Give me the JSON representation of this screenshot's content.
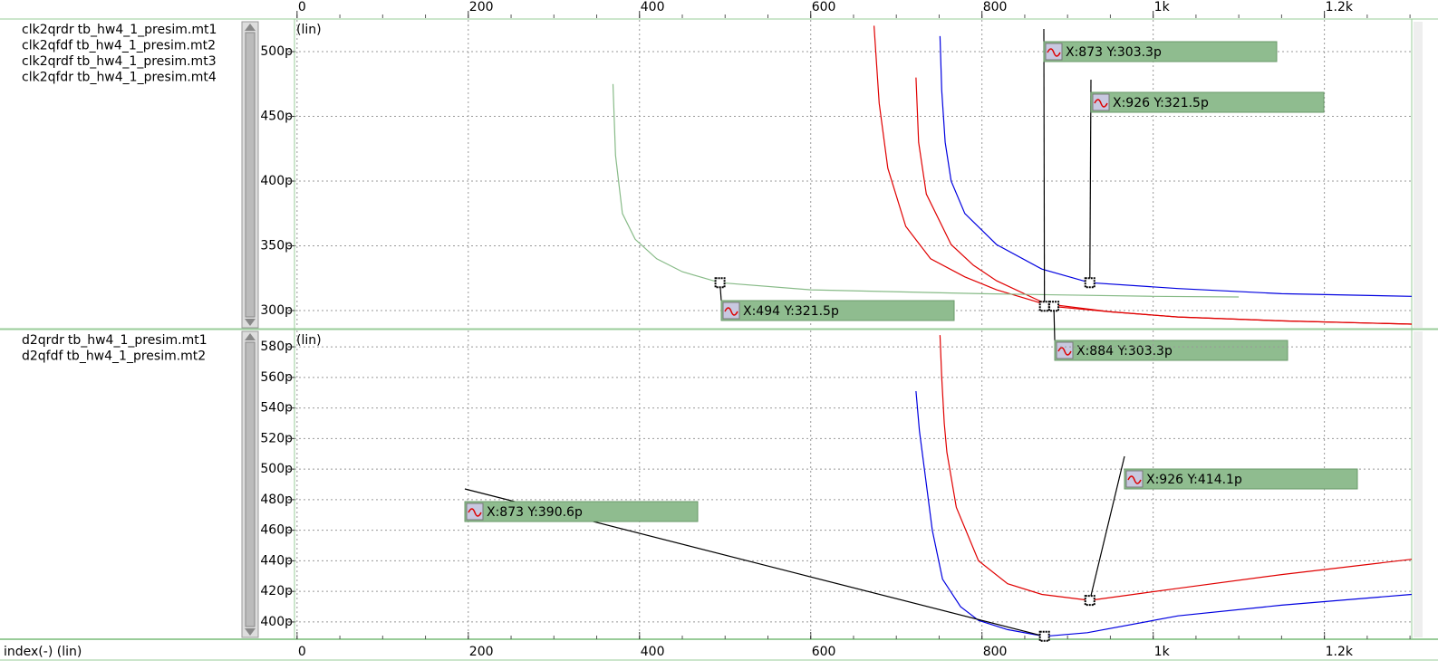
{
  "x_axis": {
    "label": "index(-) (lin)",
    "xlim": [
      -3,
      1302
    ],
    "xticks": [
      0,
      200,
      400,
      600,
      800,
      {
        "value": 1000,
        "label": "1k"
      },
      {
        "value": 1200,
        "label": "1.2k"
      }
    ]
  },
  "chart_data": [
    {
      "type": "line",
      "scale_label": "(lin)",
      "ylim": [
        286.7,
        524.5
      ],
      "yticks": [
        {
          "value": 300,
          "label": "300p"
        },
        {
          "value": 350,
          "label": "350p"
        },
        {
          "value": 400,
          "label": "400p"
        },
        {
          "value": 450,
          "label": "450p"
        },
        {
          "value": 500,
          "label": "500p"
        }
      ],
      "grid": true,
      "series": [
        {
          "name": "clk2qrdr",
          "source": "tb_hw4_1_presim.mt1",
          "color": "#e00000",
          "x": [
            674,
            680,
            690,
            711,
            740,
            780,
            817,
            870,
            950,
            1029,
            1150,
            1302
          ],
          "values": [
            520,
            460,
            410,
            365,
            340,
            326,
            316,
            305.6,
            299,
            295,
            292,
            289.5
          ]
        },
        {
          "name": "clk2qfdf",
          "source": "tb_hw4_1_presim.mt2",
          "color": "#0000e0",
          "x": [
            751,
            753,
            757,
            764,
            780,
            817,
            870,
            926,
            1029,
            1150,
            1302
          ],
          "values": [
            512,
            470,
            430,
            400,
            375,
            351,
            332,
            321.5,
            317,
            313,
            311
          ]
        },
        {
          "name": "clk2qrdf",
          "source": "tb_hw4_1_presim.mt3",
          "color": "#e00000",
          "x": [
            723,
            726,
            735,
            764,
            790,
            817,
            881,
            950,
            1029,
            1150,
            1302
          ],
          "values": [
            480,
            430,
            390,
            351,
            335,
            323,
            303.3,
            299,
            295,
            292,
            289.5
          ]
        },
        {
          "name": "clk2qfdr",
          "source": "tb_hw4_1_presim.mt4",
          "color": "#88bb88",
          "x": [
            369,
            372,
            380,
            395,
            420,
            450,
            494,
            600,
            800,
            1000,
            1100
          ],
          "values": [
            475,
            420,
            375,
            355,
            340,
            330,
            321.5,
            316,
            313,
            311,
            310.5
          ]
        }
      ],
      "annotations": [
        {
          "text": "X:873 Y:303.3p",
          "x": 873,
          "y": 303.3
        },
        {
          "text": "X:926 Y:321.5p",
          "x": 926,
          "y": 321.5
        },
        {
          "text": "X:494 Y:321.5p",
          "x": 494,
          "y": 321.5
        },
        {
          "text": "X:884 Y:303.3p",
          "x": 884,
          "y": 303.3
        }
      ]
    },
    {
      "type": "line",
      "scale_label": "(lin)",
      "ylim": [
        389.3,
        590.7
      ],
      "yticks": [
        {
          "value": 400,
          "label": "400p"
        },
        {
          "value": 420,
          "label": "420p"
        },
        {
          "value": 440,
          "label": "440p"
        },
        {
          "value": 460,
          "label": "460p"
        },
        {
          "value": 480,
          "label": "480p"
        },
        {
          "value": 500,
          "label": "500p"
        },
        {
          "value": 520,
          "label": "520p"
        },
        {
          "value": 540,
          "label": "540p"
        },
        {
          "value": 560,
          "label": "560p"
        },
        {
          "value": 580,
          "label": "580p"
        }
      ],
      "grid": true,
      "series": [
        {
          "name": "d2qrdr",
          "source": "tb_hw4_1_presim.mt1",
          "color": "#0000e0",
          "x": [
            723,
            727,
            733,
            742,
            754,
            775,
            796,
            830,
            873,
            923,
            1029,
            1150,
            1302
          ],
          "values": [
            551,
            525,
            499,
            460,
            428,
            410,
            401,
            395,
            390.6,
            393,
            404,
            411,
            418
          ]
        },
        {
          "name": "d2qfdf",
          "source": "tb_hw4_1_presim.mt2",
          "color": "#e00000",
          "x": [
            751,
            753,
            756,
            759,
            770,
            796,
            830,
            870,
            926,
            1029,
            1150,
            1302
          ],
          "values": [
            587.7,
            560,
            530,
            511,
            475,
            440,
            425,
            418,
            414.1,
            422,
            431,
            441
          ]
        }
      ],
      "annotations": [
        {
          "text": "X:873 Y:390.6p",
          "x": 873,
          "y": 390.6
        },
        {
          "text": "X:926 Y:414.1p",
          "x": 926,
          "y": 414.1
        }
      ]
    }
  ]
}
